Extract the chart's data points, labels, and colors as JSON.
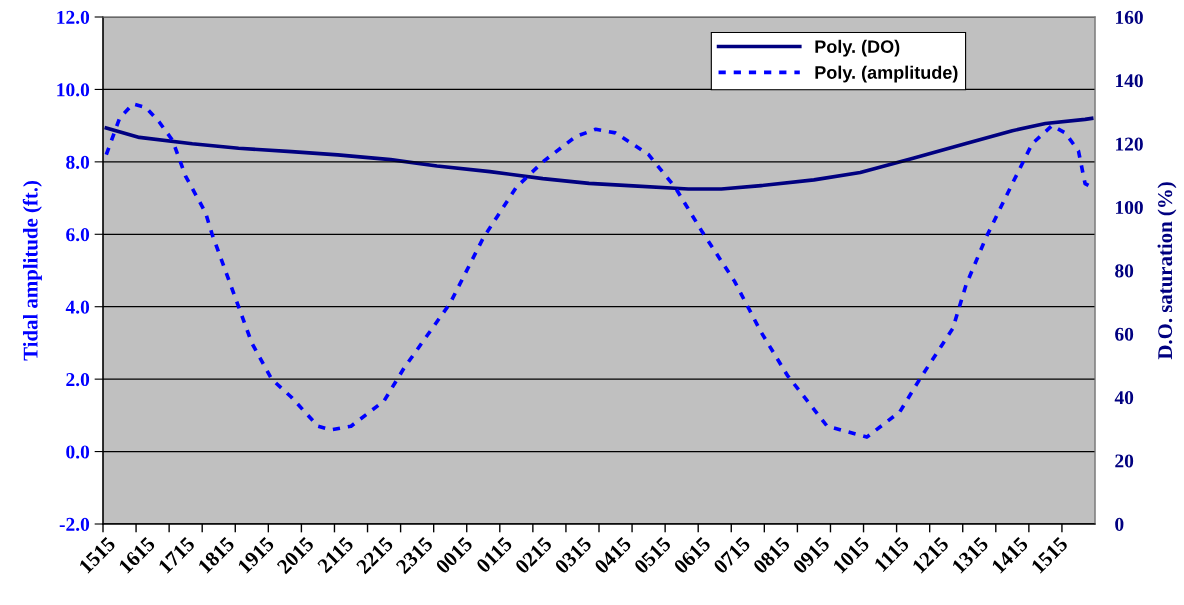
{
  "chart_data": {
    "type": "line",
    "ylabel": "Tidal amplitude (ft.)",
    "y2label": "D.O. saturation (%)",
    "categories": [
      "1515",
      null,
      null,
      null,
      null,
      null,
      "1615",
      null,
      null,
      null,
      null,
      null,
      "1715",
      null,
      null,
      null,
      null,
      null,
      "1815",
      null,
      null,
      null,
      null,
      null,
      "1915",
      null,
      null,
      null,
      null,
      null,
      "2015",
      null,
      null,
      null,
      null,
      null,
      "2115",
      null,
      null,
      null,
      null,
      null,
      "2215",
      null,
      null,
      null,
      null,
      null,
      "2315",
      null,
      null,
      null,
      null,
      null,
      "0015",
      null,
      null,
      null,
      null,
      null,
      "0115",
      null,
      null,
      null,
      null,
      null,
      "0215",
      null,
      null,
      null,
      null,
      null,
      "0315",
      null,
      null,
      null,
      null,
      null,
      "0415",
      null,
      null,
      null,
      null,
      null,
      "0515",
      null,
      null,
      null,
      null,
      null,
      "0615",
      null,
      null,
      null,
      null,
      null,
      "0715",
      null,
      null,
      null,
      null,
      null,
      "0815",
      null,
      null,
      null,
      null,
      null,
      "0915",
      null,
      null,
      null,
      null,
      null,
      "1015",
      null,
      null,
      null,
      null,
      null,
      "1115",
      null,
      null,
      null,
      null,
      null,
      "1215",
      null,
      null,
      null,
      null,
      null,
      "1315",
      null,
      null,
      null,
      null,
      null,
      "1415",
      null,
      null,
      null,
      null,
      null,
      "1515",
      null,
      null,
      null,
      null,
      null
    ],
    "ylim": [
      -2,
      12
    ],
    "yticks": [
      {
        "value": -2,
        "label": "-2.0"
      },
      {
        "value": 0,
        "label": "0.0"
      },
      {
        "value": 2,
        "label": "2.0"
      },
      {
        "value": 4,
        "label": "4.0"
      },
      {
        "value": 6,
        "label": "6.0"
      },
      {
        "value": 8,
        "label": "8.0"
      },
      {
        "value": 10,
        "label": "10.0"
      },
      {
        "value": 12,
        "label": "12.0"
      }
    ],
    "y2lim": [
      0,
      160
    ],
    "y2ticks": [
      0,
      20,
      40,
      60,
      80,
      100,
      120,
      140,
      160
    ],
    "grid": "y",
    "legend": "top right",
    "marker": "none",
    "series": [
      {
        "name": "Poly. (DO)",
        "color": "#000080",
        "axis": "y2",
        "line_style": "solid",
        "values": [
          125,
          null,
          null,
          null,
          null,
          122,
          null,
          null,
          null,
          null,
          null,
          null,
          null,
          120,
          null,
          null,
          null,
          null,
          null,
          null,
          118.6,
          null,
          null,
          null,
          null,
          null,
          null,
          null,
          117.5,
          null,
          null,
          null,
          null,
          null,
          null,
          116.5,
          null,
          null,
          null,
          null,
          null,
          null,
          null,
          115,
          null,
          null,
          null,
          null,
          null,
          null,
          113,
          null,
          null,
          null,
          null,
          null,
          null,
          null,
          111.2,
          null,
          null,
          null,
          null,
          null,
          null,
          null,
          109,
          null,
          null,
          null,
          null,
          null,
          null,
          107.5,
          null,
          null,
          null,
          null,
          null,
          106.8,
          null,
          null,
          null,
          null,
          null,
          null,
          null,
          null,
          105.7,
          null,
          null,
          null,
          null,
          105.7,
          null,
          null,
          null,
          null,
          null,
          106.8,
          null,
          null,
          null,
          null,
          null,
          null,
          null,
          108.6,
          null,
          null,
          null,
          null,
          null,
          null,
          110.9,
          null,
          null,
          null,
          null,
          null,
          null,
          null,
          115.4,
          null,
          null,
          null,
          null,
          null,
          null,
          null,
          120.1,
          null,
          null,
          null,
          null,
          null,
          null,
          124.1,
          null,
          null,
          null,
          null,
          126.4,
          null,
          null,
          null,
          null,
          null,
          127.7,
          128
        ]
      },
      {
        "name": "Poly. (amplitude)",
        "color": "#0000ff",
        "line_style": "dotted",
        "values": [
          8.2,
          null,
          9.2,
          null,
          9.6,
          null,
          9.5,
          null,
          9.1,
          null,
          8.6,
          null,
          7.6,
          null,
          null,
          6.6,
          6.0,
          null,
          5.0,
          null,
          4.0,
          null,
          3.0,
          null,
          null,
          2.0,
          null,
          null,
          1.5,
          null,
          null,
          null,
          0.7,
          null,
          0.6,
          null,
          null,
          0.7,
          null,
          null,
          null,
          null,
          1.4,
          null,
          null,
          2.3,
          null,
          null,
          null,
          null,
          null,
          null,
          4.1,
          null,
          null,
          null,
          null,
          5.9,
          null,
          null,
          null,
          null,
          7.3,
          null,
          null,
          null,
          8.0,
          null,
          null,
          null,
          null,
          8.7,
          null,
          null,
          8.9,
          null,
          null,
          8.8,
          null,
          null,
          null,
          null,
          8.2,
          null,
          null,
          null,
          7.3,
          null,
          null,
          null,
          6.1,
          null,
          null,
          null,
          null,
          4.7,
          null,
          null,
          null,
          3.3,
          null,
          null,
          null,
          2.1,
          null,
          null,
          null,
          null,
          null,
          0.7,
          null,
          null,
          null,
          null,
          null,
          0.4,
          null,
          null,
          null,
          null,
          1.1,
          null,
          null,
          2.0,
          null,
          null,
          null,
          null,
          3.4,
          null,
          4.6,
          null,
          null,
          5.9,
          null,
          null,
          null,
          7.4,
          null,
          null,
          8.5,
          null,
          null,
          9.0,
          null,
          8.8,
          null,
          8.3,
          7.4,
          7.3
        ]
      }
    ]
  }
}
